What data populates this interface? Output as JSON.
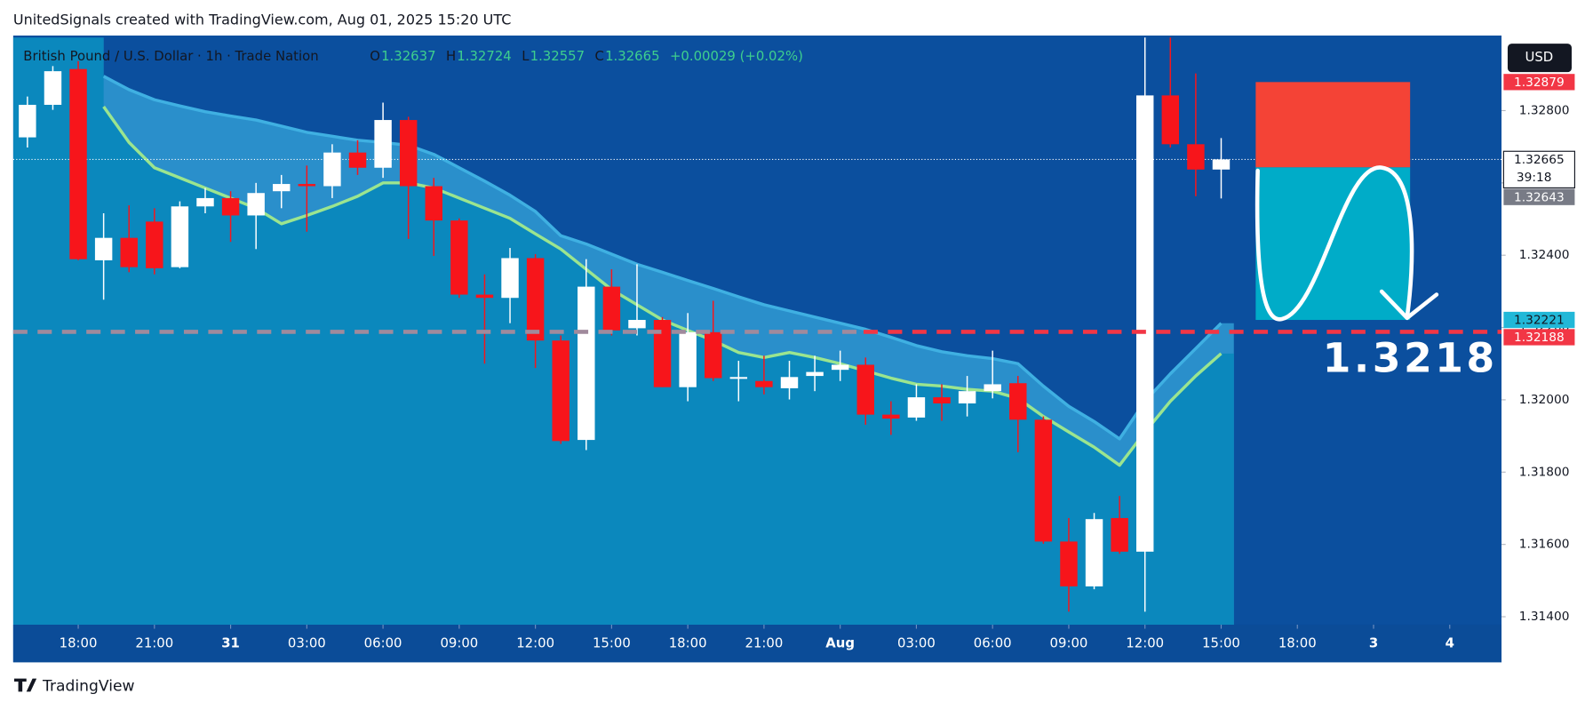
{
  "chart_data": {
    "type": "candlestick",
    "watermark": "UnitedSignals created with TradingView.com, Aug 01, 2025 15:20 UTC",
    "title": "British Pound / U.S. Dollar · 1h · Trade Nation",
    "ohlc_labels": [
      "O",
      "H",
      "L",
      "C"
    ],
    "change": "+0.00029 (+0.02%)",
    "currency": "USD",
    "countdown": "39:18",
    "brand": "TradingView",
    "annotation": "1.3218",
    "up_color": "#ffffff",
    "down_color": "#f7151b",
    "ma_color": "#9be58f",
    "open": [
      1.32726,
      1.32816,
      1.32915,
      1.32386,
      1.32448,
      1.32493,
      1.32367,
      1.32535,
      1.32558,
      1.3251,
      1.32577,
      1.32597,
      1.32591,
      1.32684,
      1.32642,
      1.32774,
      1.32591,
      1.32496,
      1.32291,
      1.32282,
      1.32392,
      1.32164,
      1.31889,
      1.32313,
      1.32198,
      1.32221,
      1.32035,
      1.32187,
      1.32058,
      1.32052,
      1.32032,
      1.32066,
      1.32083,
      1.32097,
      1.31959,
      1.31951,
      1.32007,
      1.3199,
      1.32024,
      1.32046,
      1.31945,
      1.31608,
      1.31484,
      1.31673,
      1.3158,
      1.32842,
      1.32707,
      1.32637
    ],
    "high": [
      1.32839,
      1.32923,
      1.32937,
      1.32516,
      1.32538,
      1.3253,
      1.32549,
      1.32586,
      1.32577,
      1.326,
      1.32622,
      1.32648,
      1.32707,
      1.32718,
      1.32822,
      1.32783,
      1.32614,
      1.32502,
      1.32347,
      1.3242,
      1.32403,
      1.32178,
      1.32389,
      1.32361,
      1.32375,
      1.32229,
      1.3224,
      1.32274,
      1.32108,
      1.32122,
      1.32108,
      1.32122,
      1.32136,
      1.32117,
      1.31996,
      1.32043,
      1.32043,
      1.32066,
      1.32136,
      1.32066,
      1.31954,
      1.31673,
      1.31687,
      1.31734,
      1.33007,
      1.33007,
      1.32903,
      1.32724
    ],
    "low": [
      1.32698,
      1.32802,
      1.32386,
      1.32277,
      1.32353,
      1.32347,
      1.32364,
      1.32516,
      1.32437,
      1.32417,
      1.3253,
      1.32465,
      1.32558,
      1.32622,
      1.32614,
      1.32445,
      1.32398,
      1.32282,
      1.321,
      1.32212,
      1.32088,
      1.31878,
      1.31861,
      1.32178,
      1.32178,
      1.32035,
      1.31996,
      1.32052,
      1.31996,
      1.32015,
      1.32001,
      1.32024,
      1.32052,
      1.31931,
      1.31903,
      1.31942,
      1.31942,
      1.31954,
      1.32004,
      1.31855,
      1.31602,
      1.31414,
      1.31476,
      1.31574,
      1.31414,
      1.32698,
      1.32563,
      1.32557
    ],
    "close": [
      1.32816,
      1.32909,
      1.32389,
      1.32448,
      1.32367,
      1.32364,
      1.32535,
      1.32558,
      1.3251,
      1.32572,
      1.32597,
      1.32591,
      1.32684,
      1.32642,
      1.32774,
      1.32591,
      1.32496,
      1.32291,
      1.32282,
      1.32392,
      1.32164,
      1.31886,
      1.32313,
      1.32192,
      1.32221,
      1.32035,
      1.32187,
      1.3206,
      1.32063,
      1.32035,
      1.32063,
      1.32077,
      1.32097,
      1.31959,
      1.31948,
      1.32007,
      1.3199,
      1.32024,
      1.32043,
      1.31945,
      1.31608,
      1.31484,
      1.3167,
      1.3158,
      1.32842,
      1.32707,
      1.32637,
      1.32665
    ],
    "ma": [
      null,
      null,
      null,
      1.32811,
      1.32712,
      1.32642,
      1.32614,
      1.32586,
      1.32558,
      1.3253,
      1.32487,
      1.3251,
      1.32535,
      1.32563,
      1.326,
      1.326,
      1.32586,
      1.32558,
      1.3253,
      1.32502,
      1.32459,
      1.32417,
      1.32361,
      1.32305,
      1.32263,
      1.32221,
      1.32192,
      1.32164,
      1.32131,
      1.32117,
      1.32131,
      1.32117,
      1.321,
      1.3208,
      1.3206,
      1.32043,
      1.32038,
      1.32029,
      1.32024,
      1.32004,
      1.31954,
      1.31911,
      1.31869,
      1.31819,
      1.31911,
      1.31996,
      1.32066,
      1.32128
    ],
    "band": [
      null,
      null,
      null,
      1.32895,
      1.32858,
      1.3283,
      1.32813,
      1.32797,
      1.32785,
      1.32774,
      1.32757,
      1.3274,
      1.32729,
      1.32718,
      1.32712,
      1.32704,
      1.32679,
      1.32642,
      1.32605,
      1.32566,
      1.32521,
      1.32454,
      1.32431,
      1.32403,
      1.32375,
      1.32353,
      1.3233,
      1.32308,
      1.32285,
      1.32263,
      1.32246,
      1.32229,
      1.32212,
      1.32195,
      1.32173,
      1.3215,
      1.32133,
      1.32122,
      1.32114,
      1.321,
      1.32038,
      1.31982,
      1.3194,
      1.31892,
      1.31996,
      1.32072,
      1.32142,
      1.32212
    ],
    "xlim": [
      -0.56,
      58.04
    ],
    "xticks": [
      {
        "value": 2,
        "label": "18:00"
      },
      {
        "value": 5,
        "label": "21:00"
      },
      {
        "value": 8,
        "label": "31"
      },
      {
        "value": 11,
        "label": "03:00"
      },
      {
        "value": 14,
        "label": "06:00"
      },
      {
        "value": 17,
        "label": "09:00"
      },
      {
        "value": 20,
        "label": "12:00"
      },
      {
        "value": 23,
        "label": "15:00"
      },
      {
        "value": 26,
        "label": "18:00"
      },
      {
        "value": 29,
        "label": "21:00"
      },
      {
        "value": 32,
        "label": "Aug"
      },
      {
        "value": 35,
        "label": "03:00"
      },
      {
        "value": 38,
        "label": "06:00"
      },
      {
        "value": 41,
        "label": "09:00"
      },
      {
        "value": 44,
        "label": "12:00"
      },
      {
        "value": 47,
        "label": "15:00"
      },
      {
        "value": 50,
        "label": "18:00"
      },
      {
        "value": 53,
        "label": "3"
      },
      {
        "value": 56,
        "label": "4"
      }
    ],
    "ylim": [
      1.31378,
      1.33002
    ],
    "yticks": [
      {
        "value": 1.314,
        "label": "1.31400"
      },
      {
        "value": 1.316,
        "label": "1.31600"
      },
      {
        "value": 1.318,
        "label": "1.31800"
      },
      {
        "value": 1.32,
        "label": "1.32000"
      },
      {
        "value": 1.322,
        "label": "1.32200"
      },
      {
        "value": 1.324,
        "label": "1.32400"
      },
      {
        "value": 1.326,
        "label": "1.32600"
      },
      {
        "value": 1.328,
        "label": "1.32800"
      }
    ],
    "stop": 1.32879,
    "entry": 1.32643,
    "target": 1.32221,
    "level": 1.32188,
    "price_tags": [
      1.32879,
      1.32665,
      1.32643,
      1.32221,
      1.32188
    ],
    "price_tag_colors": [
      "#f23645",
      "#ffffff",
      "#787b86",
      "#22b8d8",
      "#f23645"
    ]
  }
}
